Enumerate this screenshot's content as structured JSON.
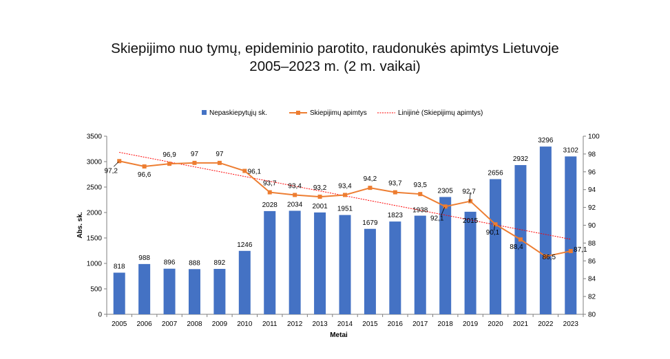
{
  "chart_data": {
    "type": "bar",
    "title_line1": "Skiepijimo nuo tymų, epideminio parotito, raudonukės  apimtys Lietuvoje",
    "title_line2": "2005–2023 m. (2 m. vaikai)",
    "xlabel": "Metai",
    "ylabel": "Abs. sk.",
    "categories": [
      "2005",
      "2006",
      "2007",
      "2008",
      "2009",
      "2010",
      "2011",
      "2012",
      "2013",
      "2014",
      "2015",
      "2016",
      "2017",
      "2018",
      "2019",
      "2020",
      "2021",
      "2022",
      "2023"
    ],
    "ylim": [
      0,
      3500
    ],
    "yticks": [
      "0",
      "500",
      "1000",
      "1500",
      "2000",
      "2500",
      "3000",
      "3500"
    ],
    "y2lim": [
      80,
      100
    ],
    "y2ticks": [
      "80",
      "82",
      "84",
      "86",
      "88",
      "90",
      "92",
      "94",
      "96",
      "98",
      "100"
    ],
    "grid": false,
    "legend_position": "top",
    "series": [
      {
        "name": "Nepaskiepytųjų sk.",
        "kind": "bar",
        "axis": "left",
        "color": "#4472C4",
        "values": [
          818,
          988,
          896,
          888,
          892,
          1246,
          2028,
          2034,
          2001,
          1951,
          1679,
          1823,
          1938,
          2305,
          2015,
          2656,
          2932,
          3296,
          3102
        ],
        "labels": [
          "818",
          "988",
          "896",
          "888",
          "892",
          "1246",
          "2028",
          "2034",
          "2001",
          "1951",
          "1679",
          "1823",
          "1938",
          "2305",
          "2015",
          "2656",
          "2932",
          "3296",
          "3102"
        ]
      },
      {
        "name": "Skiepijimų apimtys",
        "kind": "line",
        "axis": "right",
        "color": "#ED7D31",
        "values": [
          97.2,
          96.6,
          96.9,
          97,
          97,
          96.1,
          93.7,
          93.4,
          93.2,
          93.4,
          94.2,
          93.7,
          93.5,
          92.1,
          92.7,
          90.1,
          88.4,
          86.5,
          87.1
        ],
        "labels": [
          "97,2",
          "96,6",
          "96,9",
          "97",
          "97",
          "96,1",
          "93,7",
          "93,4",
          "93,2",
          "93,4",
          "94,2",
          "93,7",
          "93,5",
          "92,1",
          "92,7",
          "90,1",
          "88,4",
          "86,5",
          "87,1"
        ]
      },
      {
        "name": "Linijinė (Skiepijimų apimtys)",
        "kind": "trendline",
        "axis": "right",
        "color": "#FF0000"
      }
    ]
  }
}
